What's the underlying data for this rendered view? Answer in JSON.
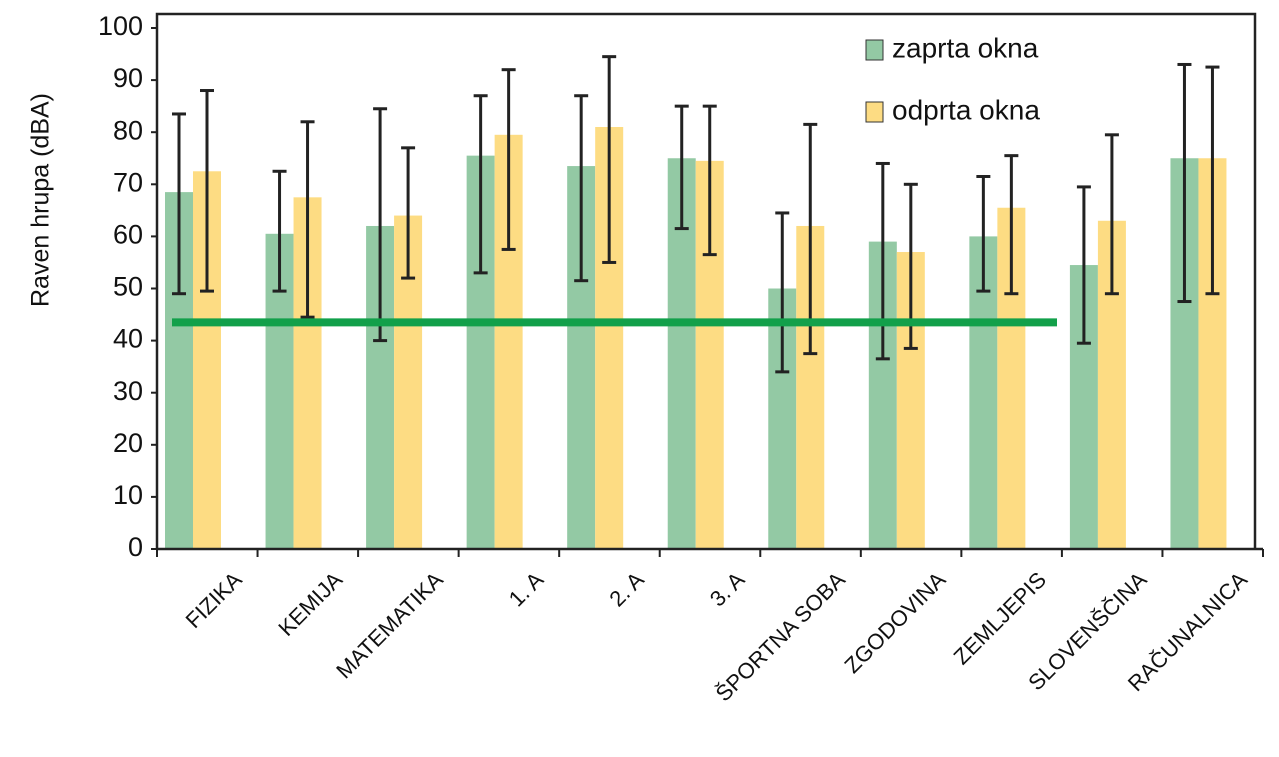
{
  "chart_data": {
    "type": "bar",
    "ylabel": "Raven hrupa (dBA)",
    "categories": [
      "FIZIKA",
      "KEMIJA",
      "MATEMATIKA",
      "1. A",
      "2. A",
      "3. A",
      "ŠPORTNA SOBA",
      "ZGODOVINA",
      "ZEMLJEPIS",
      "SLOVENŠČINA",
      "RAČUNALNICA"
    ],
    "series": [
      {
        "name": "zaprta okna",
        "color": "#93c9a4",
        "values": [
          68.5,
          60.5,
          62,
          75.5,
          73.5,
          75,
          50,
          59,
          60,
          54.5,
          75
        ],
        "error_low": [
          49,
          49.5,
          40,
          53,
          51.5,
          61.5,
          34,
          36.5,
          49.5,
          39.5,
          47.5
        ],
        "error_high": [
          83.5,
          72.5,
          84.5,
          87,
          87,
          85,
          64.5,
          74,
          71.5,
          69.5,
          93
        ]
      },
      {
        "name": "odprta okna",
        "color": "#fddc83",
        "values": [
          72.5,
          67.5,
          64,
          79.5,
          81,
          74.5,
          62,
          57,
          65.5,
          63,
          75
        ],
        "error_low": [
          49.5,
          44.5,
          52,
          57.5,
          55,
          56.5,
          37.5,
          38.5,
          49,
          49,
          49
        ],
        "error_high": [
          88,
          82,
          77,
          92,
          94.5,
          85,
          81.5,
          70,
          75.5,
          79.5,
          92.5
        ]
      }
    ],
    "hline": {
      "value": 43.5,
      "color": "#12a04a"
    },
    "ylim": [
      0,
      100
    ],
    "yticks": [
      0,
      10,
      20,
      30,
      40,
      50,
      60,
      70,
      80,
      90,
      100
    ],
    "legend": "upper right"
  }
}
